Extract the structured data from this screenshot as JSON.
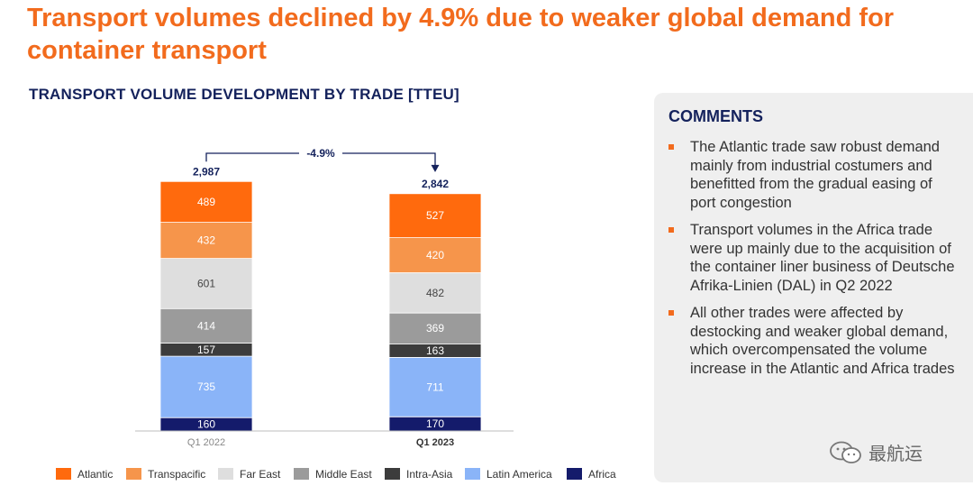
{
  "headline": "Transport volumes declined by 4.9% due to weaker global demand for container transport",
  "chart_data": {
    "type": "bar",
    "stacked": true,
    "title": "TRANSPORT VOLUME DEVELOPMENT BY TRADE [TTEU]",
    "categories": [
      "Q1 2022",
      "Q1 2023"
    ],
    "totals": [
      "2,987",
      "2,842"
    ],
    "change_label": "-4.9%",
    "series": [
      {
        "name": "Africa",
        "color": "#141b6b",
        "values": [
          160,
          170
        ]
      },
      {
        "name": "Latin America",
        "color": "#8ab4f8",
        "values": [
          735,
          711
        ]
      },
      {
        "name": "Intra-Asia",
        "color": "#3c3c3c",
        "values": [
          157,
          163
        ]
      },
      {
        "name": "Middle East",
        "color": "#9b9b9b",
        "values": [
          414,
          369
        ]
      },
      {
        "name": "Far East",
        "color": "#dedede",
        "values": [
          601,
          482
        ]
      },
      {
        "name": "Transpacific",
        "color": "#f6954b",
        "values": [
          432,
          420
        ]
      },
      {
        "name": "Atlantic",
        "color": "#ff6a0d",
        "values": [
          489,
          527
        ]
      }
    ],
    "legend_order": [
      "Atlantic",
      "Transpacific",
      "Far East",
      "Middle East",
      "Intra-Asia",
      "Latin America",
      "Africa"
    ],
    "legend_position": "bottom"
  },
  "comments": {
    "title": "COMMENTS",
    "items": [
      "The Atlantic trade saw robust demand mainly from industrial costumers and benefitted from the gradual easing of port congestion",
      "Transport volumes in the Africa trade were up mainly due to the acquisition of the container liner business of Deutsche Afrika-Linien (DAL) in Q2 2022",
      "All other trades were affected by destocking and weaker global demand, which overcompensated the volume increase in the Atlantic and Africa trades"
    ]
  },
  "watermark": "最航运",
  "colors": {
    "accent": "#f26b1d",
    "navy": "#14225c"
  }
}
